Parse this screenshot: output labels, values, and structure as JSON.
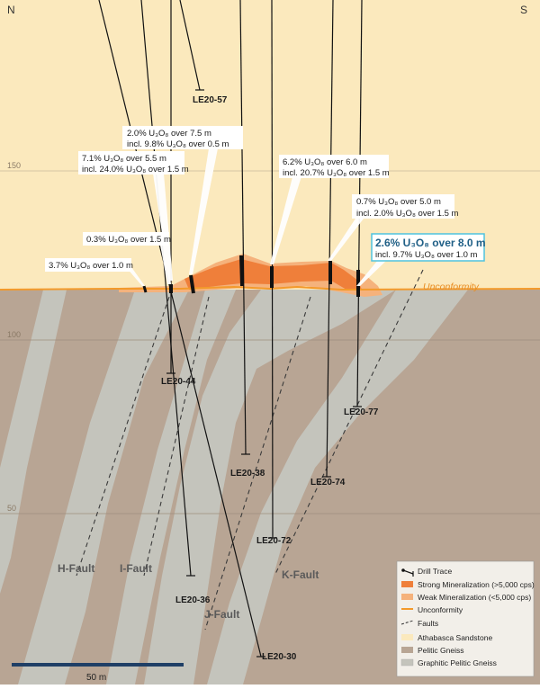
{
  "compass": {
    "north": "N",
    "south": "S"
  },
  "elevation_ticks": [
    "150",
    "100",
    "50"
  ],
  "drill_holes": [
    "LE20-57",
    "LE20-44",
    "LE20-38",
    "LE20-72",
    "LE20-74",
    "LE20-77",
    "LE20-36",
    "LE20-30"
  ],
  "intercepts": {
    "i1_l1": "2.0% U₃O₈ over 7.5 m",
    "i1_l2": "incl. 9.8% U₃O₈ over 0.5 m",
    "i2_l1": "7.1% U₃O₈ over 5.5 m",
    "i2_l2": "incl. 24.0% U₃O₈ over 1.5 m",
    "i3_l1": "6.2% U₃O₈ over 6.0 m",
    "i3_l2": "incl. 20.7% U₃O₈ over 1.5 m",
    "i4_l1": "0.7% U₃O₈ over 5.0 m",
    "i4_l2": "incl. 2.0% U₃O₈ over 1.5 m",
    "i5": "0.3% U₃O₈ over 1.5 m",
    "i6": "3.7% U₃O₈ over 1.0 m",
    "hl_l1": "2.6% U₃O₈ over 8.0 m",
    "hl_l2": "incl. 9.7% U₃O₈ over 1.0 m"
  },
  "unconformity_label": "Unconformity",
  "faults": [
    "H-Fault",
    "I-Fault",
    "J-Fault",
    "K-Fault"
  ],
  "scale_bar": "50 m",
  "legend": {
    "items": [
      {
        "label": "Drill Trace",
        "icon": "drill-trace-icon"
      },
      {
        "label": "Strong Mineralization (>5,000 cps)",
        "color": "#ef7f3a"
      },
      {
        "label": "Weak Mineralization (<5,000 cps)",
        "color": "#f4b27e"
      },
      {
        "label": "Unconformity",
        "color": "#f39a2b"
      },
      {
        "label": "Faults",
        "icon": "fault-line-icon"
      },
      {
        "label": "Athabasca Sandstone",
        "color": "#fbe9bd"
      },
      {
        "label": "Pelitic Gneiss",
        "color": "#b8a594"
      },
      {
        "label": "Graphitic Pelitic Gneiss",
        "color": "#c3c3bb"
      }
    ]
  },
  "colors": {
    "sandstone": "#fbe9bd",
    "pelitic": "#b8a594",
    "graphitic": "#c4c4bc",
    "strong": "#ef7f3a",
    "weak": "#f5b27c",
    "unconformity": "#f39a2b",
    "highlight_border": "#4fc3de",
    "highlight_text": "#1f5f86"
  }
}
